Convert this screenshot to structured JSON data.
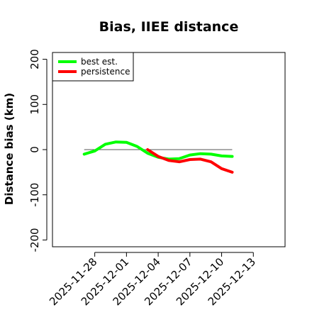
{
  "chart_data": {
    "type": "line",
    "title": "Bias, IIEE distance",
    "xlabel": "",
    "ylabel": "Distance bias (km)",
    "ylim": [
      -215,
      215
    ],
    "yticks": [
      -200,
      -100,
      0,
      100,
      200
    ],
    "xlim": [
      "2025-11-24",
      "2025-12-16"
    ],
    "xticks": [
      "2025-11-28",
      "2025-12-01",
      "2025-12-04",
      "2025-12-07",
      "2025-12-10",
      "2025-12-13"
    ],
    "reference_line": 0,
    "legend_position": "top-left",
    "series": [
      {
        "name": "best est.",
        "color": "#00ff00",
        "points": [
          [
            "2025-11-27",
            -10
          ],
          [
            "2025-11-28",
            -3
          ],
          [
            "2025-11-29",
            12
          ],
          [
            "2025-11-30",
            17
          ],
          [
            "2025-12-01",
            16
          ],
          [
            "2025-12-02",
            7
          ],
          [
            "2025-12-03",
            -8
          ],
          [
            "2025-12-04",
            -17
          ],
          [
            "2025-12-05",
            -21
          ],
          [
            "2025-12-06",
            -20
          ],
          [
            "2025-12-07",
            -12
          ],
          [
            "2025-12-08",
            -9
          ],
          [
            "2025-12-09",
            -10
          ],
          [
            "2025-12-10",
            -14
          ],
          [
            "2025-12-11",
            -15
          ]
        ]
      },
      {
        "name": "persistence",
        "color": "#ff0000",
        "points": [
          [
            "2025-12-03",
            0
          ],
          [
            "2025-12-04",
            -15
          ],
          [
            "2025-12-05",
            -24
          ],
          [
            "2025-12-06",
            -27
          ],
          [
            "2025-12-07",
            -22
          ],
          [
            "2025-12-08",
            -21
          ],
          [
            "2025-12-09",
            -27
          ],
          [
            "2025-12-10",
            -42
          ],
          [
            "2025-12-11",
            -50
          ]
        ]
      }
    ]
  }
}
